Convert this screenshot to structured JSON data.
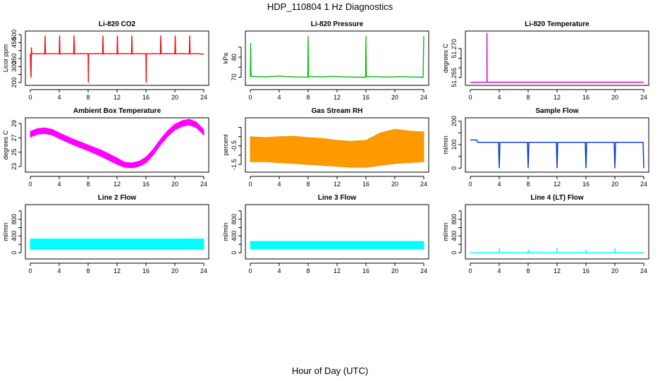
{
  "figure": {
    "title": "HDP_110804  1 Hz Diagnostics",
    "xlabel": "Hour of Day (UTC)"
  },
  "chart_data": [
    {
      "type": "line",
      "title": "Li-820 CO2",
      "ylabel": "Licor ppm",
      "color": "#ff0000",
      "xlim": [
        0,
        24
      ],
      "ylim": [
        195,
        510
      ],
      "xticks": [
        0,
        4,
        8,
        12,
        16,
        20,
        24
      ],
      "yticks": [
        200,
        250,
        300,
        350,
        400,
        450,
        500
      ],
      "yticklabels": [
        "200",
        "",
        "300",
        "350",
        "",
        "450",
        "500"
      ],
      "series": [
        {
          "name": "CO2",
          "x": [
            0,
            0.1,
            0.15,
            0.2,
            1,
            2,
            2.05,
            2.1,
            3,
            4,
            4.05,
            4.1,
            5,
            6,
            6.05,
            6.1,
            7,
            8,
            8.03,
            8.06,
            9,
            10,
            10.05,
            10.1,
            11,
            12,
            12.05,
            12.1,
            13,
            14,
            14.05,
            14.1,
            15,
            16,
            16.03,
            16.06,
            17,
            18,
            18.05,
            18.1,
            19,
            20,
            20.05,
            20.1,
            21,
            22,
            22.05,
            22.1,
            23,
            24
          ],
          "y": [
            380,
            230,
            420,
            382,
            380,
            382,
            495,
            380,
            382,
            380,
            495,
            380,
            382,
            380,
            495,
            380,
            382,
            380,
            200,
            380,
            382,
            380,
            495,
            380,
            382,
            380,
            495,
            380,
            382,
            380,
            495,
            380,
            382,
            380,
            200,
            380,
            382,
            380,
            495,
            380,
            382,
            380,
            495,
            380,
            382,
            380,
            495,
            380,
            382,
            378
          ]
        }
      ]
    },
    {
      "type": "line",
      "title": "Li-820 Pressure",
      "ylabel": "kPa",
      "color": "#00c000",
      "xlim": [
        0,
        24
      ],
      "ylim": [
        67,
        92
      ],
      "xticks": [
        0,
        4,
        8,
        12,
        16,
        20,
        24
      ],
      "yticks": [
        70,
        75,
        80,
        85
      ],
      "yticklabels": [
        "70",
        "",
        "80",
        ""
      ],
      "series": [
        {
          "name": "Pressure",
          "x": [
            0,
            0.05,
            0.1,
            0.2,
            1,
            2,
            3,
            4,
            5,
            6,
            7,
            7.95,
            8,
            8.05,
            9,
            10,
            11,
            12,
            13,
            14,
            15,
            15.95,
            16,
            16.05,
            17,
            18,
            19,
            20,
            21,
            22,
            23,
            23.9,
            24
          ],
          "y": [
            70,
            87,
            71,
            70.5,
            70.3,
            70.2,
            70.4,
            70.6,
            70.3,
            70.2,
            70.1,
            70,
            90.5,
            70.4,
            70.3,
            70.2,
            70.4,
            70.3,
            70.2,
            70.1,
            70,
            70,
            90.5,
            70.4,
            70.3,
            70.2,
            70.1,
            70.2,
            70.3,
            70.2,
            70.1,
            70,
            90.5
          ]
        }
      ]
    },
    {
      "type": "line",
      "title": "Li-820 Temperature",
      "ylabel": "degrees C",
      "color": "#cc00cc",
      "xlim": [
        0,
        24
      ],
      "ylim": [
        51.252,
        51.278
      ],
      "xticks": [
        0,
        4,
        8,
        12,
        16,
        20,
        24
      ],
      "yticks": [
        51.255,
        51.26,
        51.265,
        51.27
      ],
      "yticklabels": [
        "51.255",
        "",
        "",
        "51.270"
      ],
      "series": [
        {
          "name": "Temperature",
          "x": [
            0,
            2.3,
            2.3,
            2.32,
            24
          ],
          "y": [
            51.2525,
            51.2525,
            51.278,
            51.2525,
            51.2525
          ]
        }
      ]
    },
    {
      "type": "area",
      "title": "Ambient Box Temperature",
      "ylabel": "degrees C",
      "color": "#ff00ff",
      "xlim": [
        0,
        24
      ],
      "ylim": [
        22.5,
        29.5
      ],
      "xticks": [
        0,
        4,
        8,
        12,
        16,
        20,
        24
      ],
      "yticks": [
        23,
        25,
        27,
        29
      ],
      "yticklabels": [
        "23",
        "25",
        "27",
        "29"
      ],
      "series": [
        {
          "name": "upper",
          "x": [
            0,
            1,
            2,
            3,
            4,
            6,
            8,
            10,
            12,
            13,
            14,
            15,
            16,
            17,
            18,
            19,
            20,
            21,
            22,
            23,
            24
          ],
          "y": [
            27.9,
            28.3,
            28.4,
            28.2,
            27.7,
            26.8,
            26.0,
            25.2,
            24.2,
            23.6,
            23.5,
            23.7,
            24.3,
            25.4,
            26.8,
            28.0,
            28.9,
            29.4,
            29.6,
            29.2,
            28.1
          ]
        },
        {
          "name": "lower",
          "x": [
            0,
            1,
            2,
            3,
            4,
            6,
            8,
            10,
            12,
            13,
            14,
            15,
            16,
            17,
            18,
            19,
            20,
            21,
            22,
            23,
            24
          ],
          "y": [
            27.1,
            27.5,
            27.6,
            27.4,
            26.9,
            26.0,
            25.2,
            24.3,
            23.3,
            22.9,
            22.8,
            23.0,
            23.5,
            24.6,
            26.0,
            27.2,
            28.1,
            28.6,
            28.8,
            28.4,
            27.4
          ]
        }
      ]
    },
    {
      "type": "area",
      "title": "Gas Stream RH",
      "ylabel": "percent",
      "color": "#ff9900",
      "overlay_color": "#c09000",
      "xlim": [
        0,
        24
      ],
      "ylim": [
        -1.8,
        0.9
      ],
      "xticks": [
        0,
        4,
        8,
        12,
        16,
        20,
        24
      ],
      "yticks": [
        -1.5,
        -1.0,
        -0.5,
        0.0,
        0.5
      ],
      "yticklabels": [
        "-1.5",
        "",
        "-0.5",
        "",
        ""
      ],
      "series": [
        {
          "name": "upper",
          "x": [
            0,
            2,
            4,
            6,
            8,
            10,
            12,
            14,
            16,
            18,
            20,
            22,
            24
          ],
          "y": [
            0.0,
            -0.05,
            0.0,
            0.02,
            -0.05,
            -0.1,
            -0.2,
            -0.25,
            -0.2,
            0.2,
            0.4,
            0.3,
            0.25
          ]
        },
        {
          "name": "lower",
          "x": [
            0,
            2,
            4,
            6,
            8,
            10,
            12,
            14,
            16,
            18,
            20,
            22,
            24
          ],
          "y": [
            -1.35,
            -1.35,
            -1.4,
            -1.45,
            -1.5,
            -1.55,
            -1.6,
            -1.65,
            -1.65,
            -1.55,
            -1.45,
            -1.4,
            -1.35
          ]
        }
      ]
    },
    {
      "type": "line",
      "title": "Sample Flow",
      "ylabel": "ml/min",
      "color": "#0033dd",
      "xlim": [
        0,
        24
      ],
      "ylim": [
        -8,
        205
      ],
      "xticks": [
        0,
        4,
        8,
        12,
        16,
        20,
        24
      ],
      "yticks": [
        0,
        50,
        100,
        150,
        200
      ],
      "yticklabels": [
        "0",
        "",
        "100",
        "",
        "200"
      ],
      "series": [
        {
          "name": "Sample Flow",
          "x": [
            0,
            0.9,
            1,
            3.9,
            4,
            4.1,
            7.9,
            8,
            8.1,
            11.9,
            12,
            12.1,
            15.9,
            16,
            16.1,
            19.9,
            20,
            20.1,
            23.9,
            24
          ],
          "y": [
            120,
            120,
            110,
            110,
            0,
            110,
            110,
            0,
            110,
            110,
            0,
            110,
            110,
            0,
            110,
            110,
            0,
            110,
            110,
            0
          ]
        }
      ]
    },
    {
      "type": "area",
      "title": "Line 2 Flow",
      "ylabel": "ml/min",
      "color": "#00ffff",
      "xlim": [
        0,
        24
      ],
      "ylim": [
        -100,
        1100
      ],
      "xticks": [
        0,
        4,
        8,
        12,
        16,
        20,
        24
      ],
      "yticks": [
        0,
        200,
        400,
        600,
        800,
        1000
      ],
      "yticklabels": [
        "0",
        "",
        "400",
        "",
        "800",
        ""
      ],
      "series": [
        {
          "name": "upper",
          "x": [
            0,
            24
          ],
          "y": [
            330,
            330
          ]
        },
        {
          "name": "lower",
          "x": [
            0,
            24
          ],
          "y": [
            80,
            80
          ]
        }
      ]
    },
    {
      "type": "area",
      "title": "Line 3 Flow",
      "ylabel": "ml/min",
      "color": "#00ffff",
      "xlim": [
        0,
        24
      ],
      "ylim": [
        -100,
        1100
      ],
      "xticks": [
        0,
        4,
        8,
        12,
        16,
        20,
        24
      ],
      "yticks": [
        0,
        200,
        400,
        600,
        800,
        1000
      ],
      "yticklabels": [
        "0",
        "",
        "400",
        "",
        "800",
        ""
      ],
      "series": [
        {
          "name": "upper",
          "x": [
            0,
            24
          ],
          "y": [
            270,
            270
          ]
        },
        {
          "name": "lower",
          "x": [
            0,
            24
          ],
          "y": [
            90,
            90
          ]
        }
      ]
    },
    {
      "type": "line",
      "title": "Line 4 (LT) Flow",
      "ylabel": "ml/min",
      "color": "#00ffff",
      "xlim": [
        0,
        24
      ],
      "ylim": [
        -100,
        1100
      ],
      "xticks": [
        0,
        4,
        8,
        12,
        16,
        20,
        24
      ],
      "yticks": [
        0,
        200,
        400,
        600,
        800,
        1000
      ],
      "yticklabels": [
        "0",
        "",
        "400",
        "",
        "800",
        ""
      ],
      "series": [
        {
          "name": "Line 4 Flow",
          "x": [
            0,
            4,
            4.02,
            4.04,
            8,
            8.02,
            8.04,
            12,
            12.02,
            12.04,
            16,
            16.02,
            16.04,
            20,
            20.02,
            20.04,
            24
          ],
          "y": [
            0,
            0,
            110,
            0,
            0,
            80,
            0,
            0,
            120,
            0,
            0,
            70,
            0,
            0,
            110,
            0,
            0
          ]
        }
      ]
    }
  ]
}
